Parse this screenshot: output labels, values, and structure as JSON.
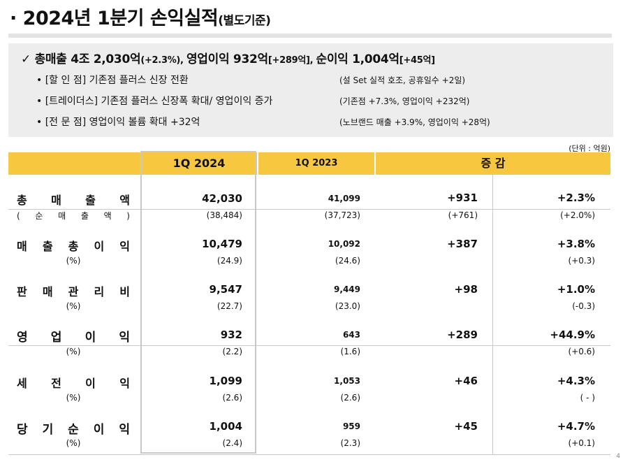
{
  "title": {
    "main": "· 2024년 1분기 손익실적",
    "sub": "(별도기준)"
  },
  "summary": {
    "check_icon": "✓",
    "head": [
      {
        "text": "총매출 4조 2,030억",
        "small": false
      },
      {
        "text": "(+2.3%), ",
        "small": true
      },
      {
        "text": " 영업이익 932억",
        "small": false
      },
      {
        "text": "[+289억], ",
        "small": true
      },
      {
        "text": " 순이익 1,004억",
        "small": false
      },
      {
        "text": "[+45억]",
        "small": true
      }
    ],
    "bullets": [
      {
        "text": "• [할  인  점]  기존점 플러스 신장 전환",
        "note": "(설 Set 실적 호조, 공휴일수 +2일)"
      },
      {
        "text": "• [트레이더스]  기존점 플러스 신장폭 확대/ 영업이익 증가",
        "note": "(기존점 +7.3%, 영업이익 +232억)"
      },
      {
        "text": "• [전  문  점]  영업이익 볼륨 확대 +32억",
        "note": "(노브랜드 매출 +3.9%, 영업이익 +28억)"
      }
    ]
  },
  "unit": "(단위 : 억원)",
  "table": {
    "headers": {
      "q1_2024": "1Q  2024",
      "q1_2023": "1Q  2023",
      "change": "증   감"
    },
    "rows": [
      {
        "label": "총 매 출 액",
        "q24": "42,030",
        "q23": "41,099",
        "diff": "+931",
        "rate": "+2.3%",
        "sub_label": "( 순 매 출 액 )",
        "sub_q24": "(38,484)",
        "sub_q23": "(37,723)",
        "sub_diff": "(+761)",
        "sub_rate": "(+2.0%)"
      },
      {
        "label": "매 출 총 이 익",
        "q24": "10,479",
        "q23": "10,092",
        "diff": "+387",
        "rate": "+3.8%",
        "sub_label": "(%)",
        "sub_q24": "(24.9)",
        "sub_q23": "(24.6)",
        "sub_diff": "",
        "sub_rate": "(+0.3)"
      },
      {
        "label": "판 매 관 리 비",
        "q24": "9,547",
        "q23": "9,449",
        "diff": "+98",
        "rate": "+1.0%",
        "sub_label": "(%)",
        "sub_q24": "(22.7)",
        "sub_q23": "(23.0)",
        "sub_diff": "",
        "sub_rate": "(-0.3)"
      },
      {
        "label": "영 업 이 익",
        "q24": "932",
        "q23": "643",
        "diff": "+289",
        "rate": "+44.9%",
        "sub_label": "(%)",
        "sub_q24": "(2.2)",
        "sub_q23": "(1.6)",
        "sub_diff": "",
        "sub_rate": "(+0.6)"
      },
      {
        "label": "세 전 이 익",
        "q24": "1,099",
        "q23": "1,053",
        "diff": "+46",
        "rate": "+4.3%",
        "sub_label": "(%)",
        "sub_q24": "(2.6)",
        "sub_q23": "(2.6)",
        "sub_diff": "",
        "sub_rate": "( - )"
      },
      {
        "label": "당 기 순 이 익",
        "q24": "1,004",
        "q23": "959",
        "diff": "+45",
        "rate": "+4.7%",
        "sub_label": "(%)",
        "sub_q24": "(2.4)",
        "sub_q23": "(2.3)",
        "sub_diff": "",
        "sub_rate": "(+0.1)"
      }
    ]
  },
  "page_number": "4"
}
